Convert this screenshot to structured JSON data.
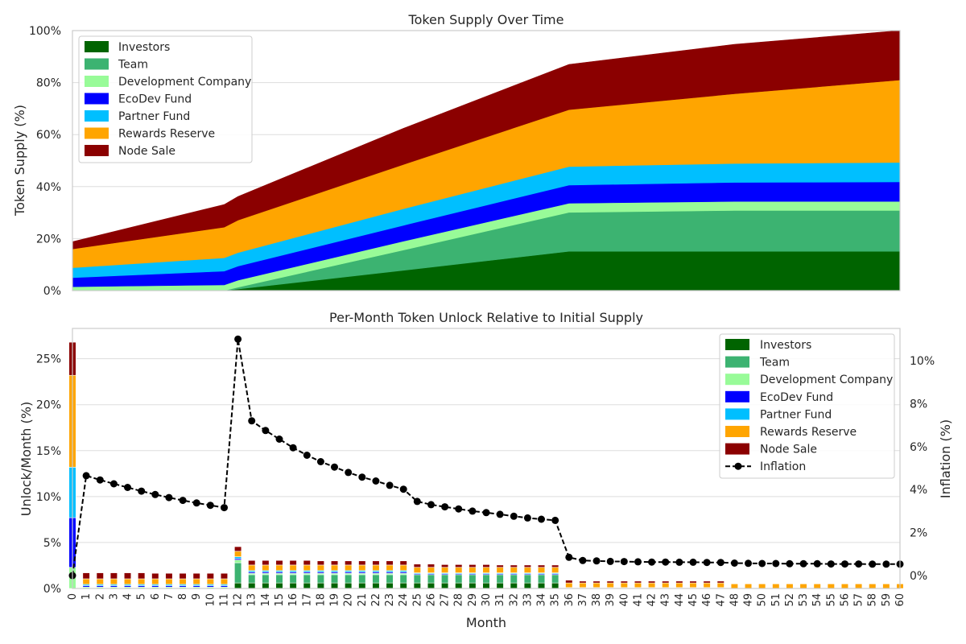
{
  "colors": {
    "Investors": "#006400",
    "Team": "#3CB371",
    "Development Company": "#98FB98",
    "EcoDev Fund": "#0000FF",
    "Partner Fund": "#00BFFF",
    "Rewards Reserve": "#FFA500",
    "Node Sale": "#8B0000",
    "inflation": "#000000"
  },
  "chart_data": [
    {
      "type": "area",
      "title": "Token Supply Over Time",
      "xlabel": "",
      "ylabel": "Token Supply (%)",
      "stacked": true,
      "xlim": [
        0,
        60
      ],
      "ylim": [
        0,
        100
      ],
      "yticks": [
        "0%",
        "20%",
        "40%",
        "60%",
        "80%",
        "100%"
      ],
      "grid": true,
      "legend": "top-left",
      "x": [
        0,
        11,
        12,
        24,
        36,
        48,
        60
      ],
      "series": [
        {
          "name": "Investors",
          "values": [
            0,
            0,
            0.6,
            7.8,
            15.1,
            15.1,
            15.1
          ]
        },
        {
          "name": "Team",
          "values": [
            0,
            0,
            0.7,
            7.8,
            15.0,
            15.7,
            15.7
          ]
        },
        {
          "name": "Development Company",
          "values": [
            1.5,
            2.2,
            2.7,
            3.4,
            3.5,
            3.5,
            3.5
          ]
        },
        {
          "name": "EcoDev Fund",
          "values": [
            3.5,
            5.3,
            5.4,
            6.1,
            7.0,
            7.3,
            7.5
          ]
        },
        {
          "name": "Partner Fund",
          "values": [
            3.8,
            5.1,
            5.2,
            6.4,
            7.1,
            7.3,
            7.5
          ]
        },
        {
          "name": "Rewards Reserve",
          "values": [
            7.2,
            11.8,
            12.5,
            17.0,
            21.9,
            26.8,
            31.7
          ]
        },
        {
          "name": "Node Sale",
          "values": [
            2.8,
            8.7,
            9.1,
            13.9,
            17.4,
            19.0,
            19.0
          ]
        }
      ]
    },
    {
      "type": "bar",
      "title": "Per-Month Token Unlock Relative to Initial Supply",
      "xlabel": "Month",
      "ylabel": "Unlock/Month (%)",
      "y2label": "Inflation (%)",
      "stacked": true,
      "xlim": [
        0,
        60
      ],
      "ylim": [
        0,
        28.3
      ],
      "y2lim": [
        -0.6,
        11.5
      ],
      "yticks": [
        "0%",
        "5%",
        "10%",
        "15%",
        "20%",
        "25%"
      ],
      "y2ticks": [
        "0%",
        "2%",
        "4%",
        "6%",
        "8%",
        "10%"
      ],
      "grid": true,
      "legend": "top-right",
      "categories": [
        "0",
        "1",
        "2",
        "3",
        "4",
        "5",
        "6",
        "7",
        "8",
        "9",
        "10",
        "11",
        "12",
        "13",
        "14",
        "15",
        "16",
        "17",
        "18",
        "19",
        "20",
        "21",
        "22",
        "23",
        "24",
        "25",
        "26",
        "27",
        "28",
        "29",
        "30",
        "31",
        "32",
        "33",
        "34",
        "35",
        "36",
        "37",
        "38",
        "39",
        "40",
        "41",
        "42",
        "43",
        "44",
        "45",
        "46",
        "47",
        "48",
        "49",
        "50",
        "51",
        "52",
        "53",
        "54",
        "55",
        "56",
        "57",
        "58",
        "59",
        "60"
      ],
      "series": [
        {
          "name": "Investors",
          "values": [
            0,
            0,
            0,
            0,
            0,
            0,
            0,
            0,
            0,
            0,
            0,
            0,
            0.6,
            0.6,
            0.6,
            0.6,
            0.6,
            0.6,
            0.6,
            0.6,
            0.6,
            0.6,
            0.6,
            0.6,
            0.6,
            0.6,
            0.6,
            0.6,
            0.6,
            0.6,
            0.6,
            0.6,
            0.6,
            0.6,
            0.6,
            0.6,
            0,
            0,
            0,
            0,
            0,
            0,
            0,
            0,
            0,
            0,
            0,
            0,
            0,
            0,
            0,
            0,
            0,
            0,
            0,
            0,
            0,
            0,
            0,
            0,
            0
          ]
        },
        {
          "name": "Team",
          "values": [
            0,
            0,
            0,
            0,
            0,
            0,
            0,
            0,
            0,
            0,
            0,
            0,
            2.2,
            0.9,
            0.9,
            0.9,
            0.9,
            0.9,
            0.9,
            0.9,
            0.9,
            0.9,
            0.9,
            0.9,
            0.9,
            0.9,
            0.9,
            0.9,
            0.9,
            0.9,
            0.9,
            0.9,
            0.9,
            0.9,
            0.9,
            0.9,
            0,
            0,
            0,
            0,
            0,
            0,
            0,
            0,
            0,
            0,
            0,
            0,
            0,
            0,
            0,
            0,
            0,
            0,
            0,
            0,
            0,
            0,
            0,
            0,
            0
          ]
        },
        {
          "name": "Development Company",
          "values": [
            2.3,
            0.15,
            0.15,
            0.15,
            0.15,
            0.15,
            0.15,
            0.15,
            0.15,
            0.15,
            0.15,
            0.15,
            0.3,
            0.15,
            0.15,
            0.15,
            0.15,
            0.15,
            0.15,
            0.15,
            0.15,
            0.15,
            0.15,
            0.15,
            0.15,
            0,
            0,
            0,
            0,
            0,
            0,
            0,
            0,
            0,
            0,
            0,
            0,
            0,
            0,
            0,
            0,
            0,
            0,
            0,
            0,
            0,
            0,
            0,
            0,
            0,
            0,
            0,
            0,
            0,
            0,
            0,
            0,
            0,
            0,
            0,
            0
          ]
        },
        {
          "name": "EcoDev Fund",
          "values": [
            5.4,
            0.15,
            0.15,
            0.15,
            0.15,
            0.15,
            0.15,
            0.15,
            0.15,
            0.15,
            0.15,
            0.15,
            0.15,
            0.15,
            0.15,
            0.15,
            0.15,
            0.15,
            0.15,
            0.15,
            0.15,
            0.15,
            0.15,
            0.15,
            0.15,
            0.1,
            0.1,
            0.1,
            0.1,
            0.1,
            0.1,
            0.1,
            0.1,
            0.1,
            0.1,
            0.1,
            0.05,
            0.05,
            0.05,
            0.05,
            0.05,
            0.05,
            0.05,
            0.05,
            0.05,
            0.05,
            0.05,
            0.05,
            0,
            0,
            0,
            0,
            0,
            0,
            0,
            0,
            0,
            0,
            0,
            0,
            0
          ]
        },
        {
          "name": "Partner Fund",
          "values": [
            5.5,
            0.15,
            0.15,
            0.15,
            0.15,
            0.15,
            0.15,
            0.15,
            0.15,
            0.15,
            0.15,
            0.15,
            0.2,
            0.15,
            0.15,
            0.15,
            0.15,
            0.15,
            0.15,
            0.15,
            0.15,
            0.15,
            0.15,
            0.15,
            0.15,
            0.1,
            0.1,
            0.1,
            0.1,
            0.1,
            0.1,
            0.1,
            0.1,
            0.1,
            0.1,
            0.1,
            0.05,
            0.05,
            0.05,
            0.05,
            0.05,
            0.05,
            0.05,
            0.05,
            0.05,
            0.05,
            0.05,
            0.05,
            0,
            0,
            0,
            0,
            0,
            0,
            0,
            0,
            0,
            0,
            0,
            0,
            0
          ]
        },
        {
          "name": "Rewards Reserve",
          "values": [
            10.0,
            0.6,
            0.6,
            0.6,
            0.6,
            0.6,
            0.6,
            0.6,
            0.6,
            0.6,
            0.6,
            0.6,
            0.6,
            0.6,
            0.6,
            0.6,
            0.6,
            0.6,
            0.6,
            0.6,
            0.6,
            0.6,
            0.6,
            0.6,
            0.6,
            0.6,
            0.6,
            0.6,
            0.6,
            0.6,
            0.6,
            0.6,
            0.6,
            0.6,
            0.6,
            0.6,
            0.5,
            0.5,
            0.5,
            0.5,
            0.5,
            0.5,
            0.5,
            0.5,
            0.5,
            0.5,
            0.5,
            0.5,
            0.5,
            0.5,
            0.5,
            0.5,
            0.5,
            0.5,
            0.5,
            0.5,
            0.5,
            0.5,
            0.5,
            0.5,
            0.5
          ]
        },
        {
          "name": "Node Sale",
          "values": [
            3.6,
            0.65,
            0.65,
            0.65,
            0.65,
            0.65,
            0.6,
            0.6,
            0.6,
            0.6,
            0.6,
            0.6,
            0.5,
            0.5,
            0.5,
            0.5,
            0.5,
            0.5,
            0.45,
            0.45,
            0.45,
            0.45,
            0.45,
            0.45,
            0.45,
            0.35,
            0.35,
            0.3,
            0.3,
            0.3,
            0.3,
            0.25,
            0.25,
            0.25,
            0.25,
            0.25,
            0.3,
            0.2,
            0.2,
            0.2,
            0.2,
            0.2,
            0.2,
            0.2,
            0.2,
            0.2,
            0.2,
            0.2,
            0,
            0,
            0,
            0,
            0,
            0,
            0,
            0,
            0,
            0,
            0,
            0,
            0
          ]
        }
      ],
      "line_series": {
        "name": "Inflation",
        "axis": "right",
        "values": [
          0,
          4.65,
          4.45,
          4.27,
          4.1,
          3.93,
          3.77,
          3.63,
          3.5,
          3.38,
          3.27,
          3.16,
          11.0,
          7.2,
          6.75,
          6.35,
          5.95,
          5.6,
          5.3,
          5.05,
          4.8,
          4.58,
          4.4,
          4.2,
          4.02,
          3.45,
          3.3,
          3.2,
          3.1,
          3.0,
          2.93,
          2.85,
          2.76,
          2.68,
          2.62,
          2.57,
          0.85,
          0.7,
          0.68,
          0.66,
          0.65,
          0.64,
          0.63,
          0.63,
          0.62,
          0.62,
          0.61,
          0.61,
          0.58,
          0.57,
          0.56,
          0.56,
          0.55,
          0.55,
          0.55,
          0.54,
          0.54,
          0.54,
          0.53,
          0.53,
          0.53
        ]
      }
    }
  ],
  "top_legend": [
    "Investors",
    "Team",
    "Development Company",
    "EcoDev Fund",
    "Partner Fund",
    "Rewards Reserve",
    "Node Sale"
  ],
  "bottom_legend": [
    "Investors",
    "Team",
    "Development Company",
    "EcoDev Fund",
    "Partner Fund",
    "Rewards Reserve",
    "Node Sale",
    "Inflation"
  ]
}
